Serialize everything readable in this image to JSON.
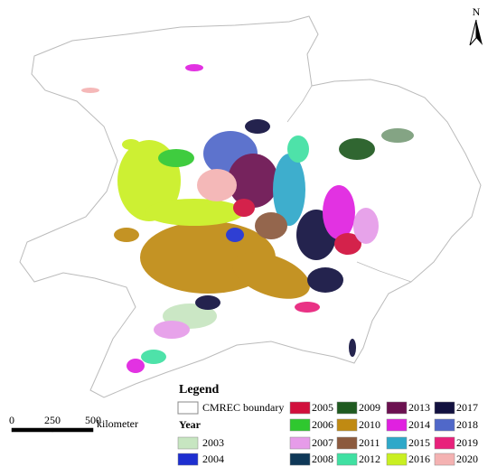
{
  "legend": {
    "title": "Legend",
    "boundary_label": "CMREC boundary",
    "year_heading": "Year",
    "years": [
      {
        "label": "2003",
        "color": "#c7e6c1"
      },
      {
        "label": "2004",
        "color": "#1e2fd0"
      },
      {
        "label": "2005",
        "color": "#d1103c"
      },
      {
        "label": "2006",
        "color": "#2fc82f"
      },
      {
        "label": "2007",
        "color": "#e69ce9"
      },
      {
        "label": "2008",
        "color": "#0f3858"
      },
      {
        "label": "2009",
        "color": "#1f5a20"
      },
      {
        "label": "2010",
        "color": "#c08a12"
      },
      {
        "label": "2011",
        "color": "#8c5a3e"
      },
      {
        "label": "2012",
        "color": "#40e0a2"
      },
      {
        "label": "2013",
        "color": "#6b1150"
      },
      {
        "label": "2014",
        "color": "#e021e0"
      },
      {
        "label": "2015",
        "color": "#2ea8c9"
      },
      {
        "label": "2016",
        "color": "#c9ef22"
      },
      {
        "label": "2017",
        "color": "#12113f"
      },
      {
        "label": "2018",
        "color": "#5068c9"
      },
      {
        "label": "2019",
        "color": "#e8217b"
      },
      {
        "label": "2020",
        "color": "#f4b2b2"
      }
    ]
  },
  "scale_bar": {
    "ticks": [
      0,
      250,
      500
    ],
    "unit": "kilometer"
  },
  "north_arrow": "N"
}
